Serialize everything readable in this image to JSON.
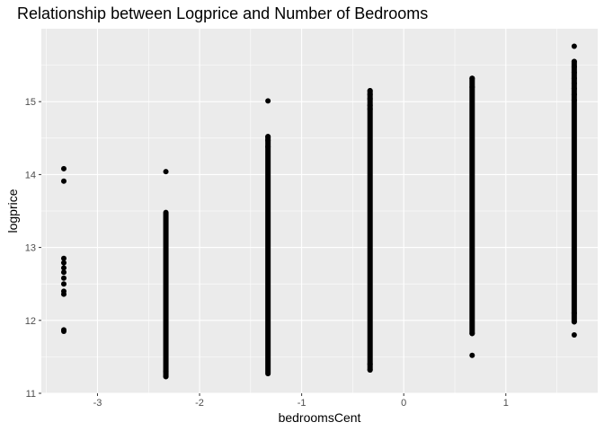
{
  "chart_data": {
    "type": "scatter",
    "title": "Relationship between Logprice and Number of Bedrooms",
    "xlabel": "bedroomsCent",
    "ylabel": "logprice",
    "xlim": [
      -3.55,
      1.9
    ],
    "ylim": [
      11.0,
      16.0
    ],
    "x_ticks": [
      -3,
      -2,
      -1,
      0,
      1
    ],
    "y_ticks": [
      11,
      12,
      13,
      14,
      15
    ],
    "grid": true,
    "legend": "none",
    "colors": {
      "panel": "#ebebeb",
      "grid_major": "#ffffff",
      "point": "#000000",
      "tick_text": "#4d4d4d"
    },
    "columns": [
      {
        "x": -3.33,
        "range": null,
        "points": [
          14.08,
          13.91,
          12.85,
          12.79,
          12.72,
          12.66,
          12.58,
          12.5,
          12.4,
          12.36,
          11.87,
          11.85
        ]
      },
      {
        "x": -2.33,
        "range": [
          11.23,
          13.48
        ],
        "points": [
          14.04,
          11.3,
          11.23
        ]
      },
      {
        "x": -1.33,
        "range": [
          11.27,
          14.52
        ],
        "points": [
          15.01,
          14.52,
          14.47,
          14.38
        ]
      },
      {
        "x": -0.33,
        "range": [
          11.32,
          15.15
        ],
        "points": [
          15.15,
          15.1,
          15.04,
          14.95,
          14.9,
          11.4,
          11.32
        ]
      },
      {
        "x": 0.67,
        "range": [
          11.82,
          15.32
        ],
        "points": [
          15.32,
          15.2,
          11.82,
          11.52
        ]
      },
      {
        "x": 1.67,
        "range": [
          11.98,
          15.55
        ],
        "points": [
          15.76,
          15.55,
          15.48,
          15.4,
          15.32,
          15.25,
          15.18,
          15.1,
          15.02,
          12.1,
          11.98,
          11.8
        ]
      }
    ]
  }
}
